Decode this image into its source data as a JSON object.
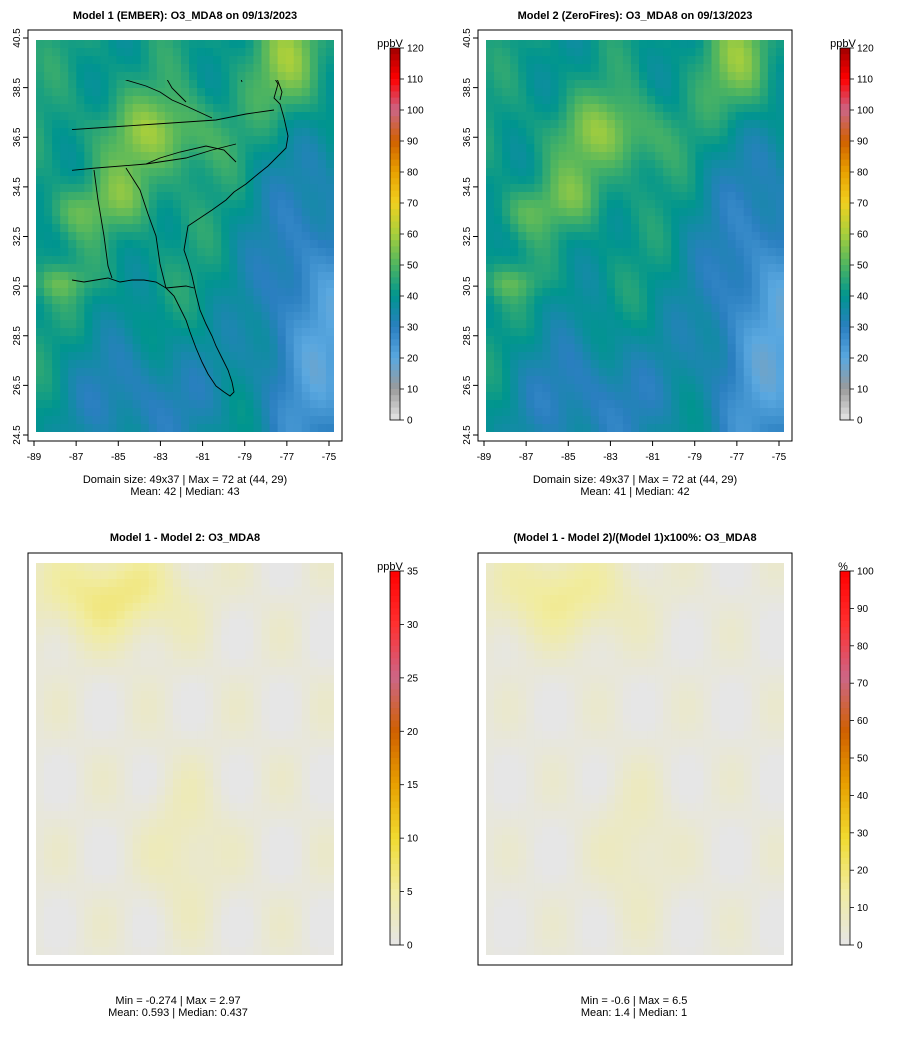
{
  "panels": [
    {
      "id": "p1",
      "title": "Model 1 (EMBER): O3_MDA8 on 09/13/2023",
      "axes_shown": true,
      "lat_ticks": [
        "24.5",
        "26.5",
        "28.5",
        "30.5",
        "32.5",
        "34.5",
        "36.5",
        "38.5",
        "40.5"
      ],
      "lon_ticks": [
        "-89",
        "-87",
        "-85",
        "-83",
        "-81",
        "-79",
        "-77",
        "-75"
      ],
      "stats_line1": "Domain size: 49x37 | Max = 72 at (44, 29)",
      "stats_line2": "Mean: 42 |  Median: 43",
      "colorbar": {
        "unit": "ppbV",
        "ticks": [
          "0",
          "10",
          "20",
          "30",
          "40",
          "50",
          "60",
          "70",
          "80",
          "90",
          "100",
          "110",
          "120"
        ],
        "range": [
          0,
          120
        ]
      },
      "field": "ozone"
    },
    {
      "id": "p2",
      "title": "Model 2 (ZeroFires): O3_MDA8 on 09/13/2023",
      "axes_shown": true,
      "lat_ticks": [
        "24.5",
        "26.5",
        "28.5",
        "30.5",
        "32.5",
        "34.5",
        "36.5",
        "38.5",
        "40.5"
      ],
      "lon_ticks": [
        "-89",
        "-87",
        "-85",
        "-83",
        "-81",
        "-79",
        "-77",
        "-75"
      ],
      "stats_line1": "Domain size: 49x37 | Max = 72 at (44, 29)",
      "stats_line2": "Mean: 41 |  Median: 42",
      "colorbar": {
        "unit": "ppbV",
        "ticks": [
          "0",
          "10",
          "20",
          "30",
          "40",
          "50",
          "60",
          "70",
          "80",
          "90",
          "100",
          "110",
          "120"
        ],
        "range": [
          0,
          120
        ]
      },
      "field": "ozone"
    },
    {
      "id": "p3",
      "title": "Model 1 - Model 2: O3_MDA8",
      "axes_shown": false,
      "stats_line1": "Min = -0.274 | Max = 2.97",
      "stats_line2": "Mean: 0.593 |  Median: 0.437",
      "colorbar": {
        "unit": "ppbV",
        "ticks": [
          "0",
          "5",
          "10",
          "15",
          "20",
          "25",
          "30",
          "35"
        ],
        "range": [
          0,
          35
        ]
      },
      "field": "diff"
    },
    {
      "id": "p4",
      "title": "(Model 1 - Model 2)/(Model 1)x100%: O3_MDA8",
      "axes_shown": false,
      "stats_line1": "Min = -0.6 | Max = 6.5",
      "stats_line2": "Mean: 1.4 |  Median: 1",
      "colorbar": {
        "unit": "%",
        "ticks": [
          "0",
          "10",
          "20",
          "30",
          "40",
          "50",
          "60",
          "70",
          "80",
          "90",
          "100"
        ],
        "range": [
          0,
          100
        ]
      },
      "field": "diff"
    }
  ],
  "colors": {
    "ozone_scale": [
      "#e6e6e6",
      "#9a9a9a",
      "#5aa8e0",
      "#2a7fc0",
      "#00958f",
      "#4fb560",
      "#a8cf3c",
      "#f0d020",
      "#e8a000",
      "#d06000",
      "#cc6688",
      "#ff0000",
      "#a00000"
    ],
    "diff_scale": [
      "#e6e6e6",
      "#f1eca0",
      "#f0da30",
      "#e8a000",
      "#d06000",
      "#cc6688",
      "#ff3030",
      "#ff0000"
    ],
    "boundary": "#000000",
    "domain_bg": "#e6e6e6"
  }
}
